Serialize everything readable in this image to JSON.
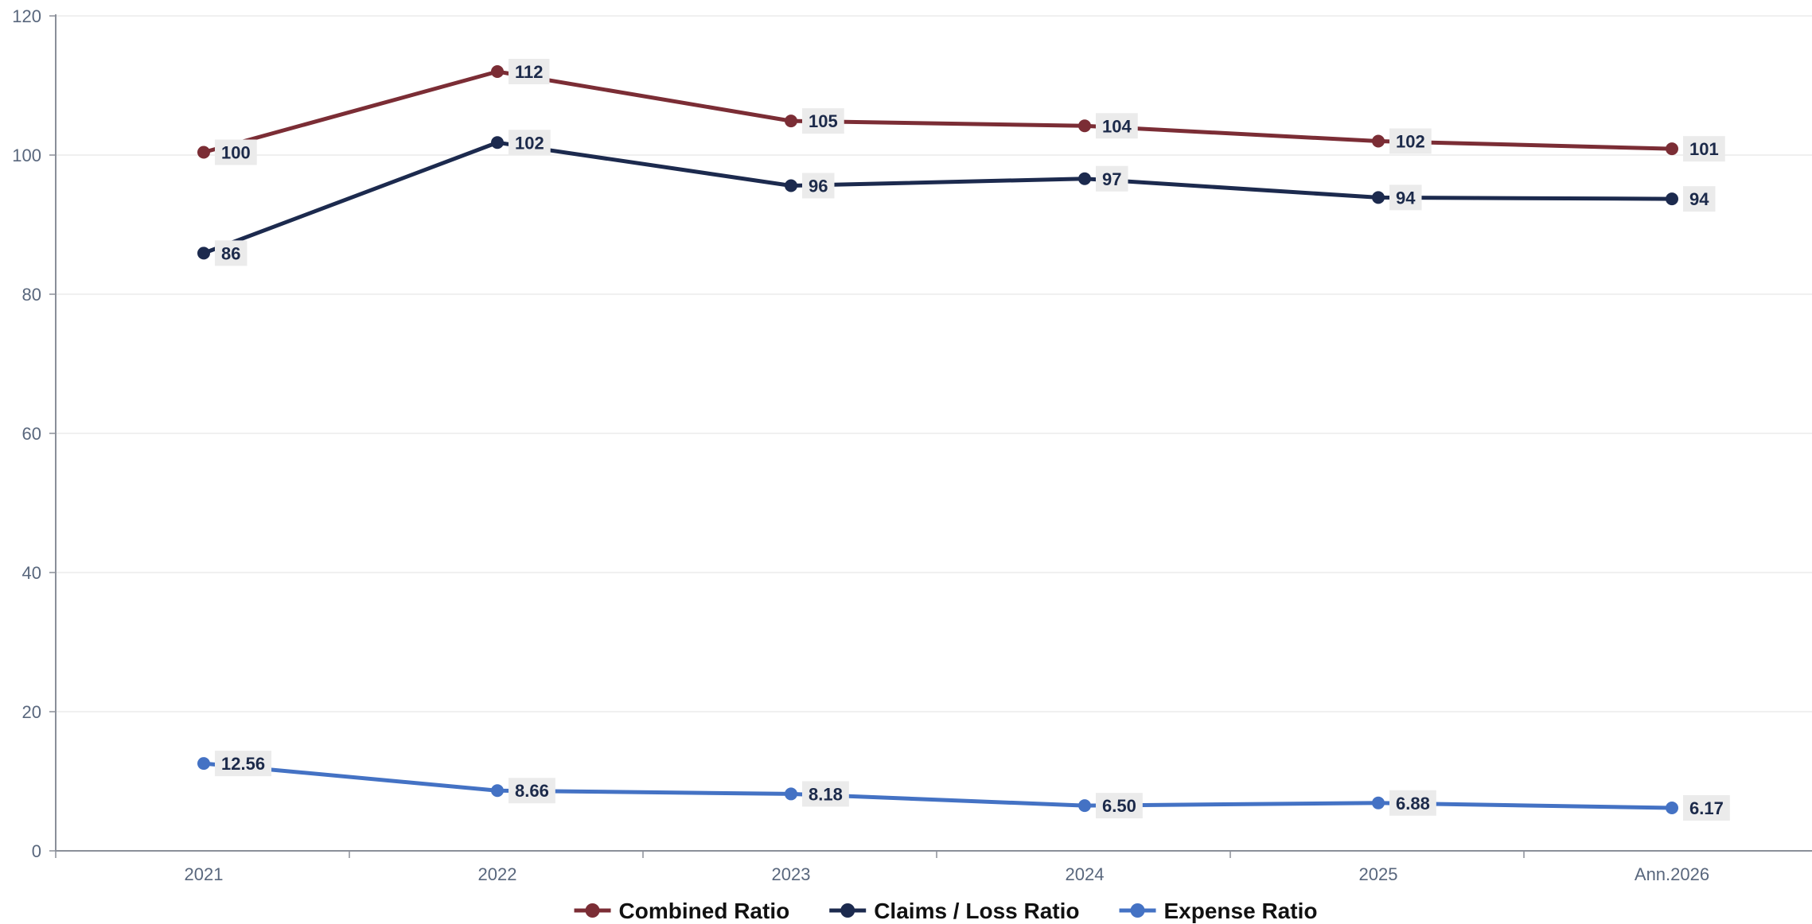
{
  "chart_data": {
    "type": "line",
    "title": "",
    "xlabel": "",
    "ylabel": "",
    "categories": [
      "2021",
      "2022",
      "2023",
      "2024",
      "2025",
      "Ann.2026"
    ],
    "ylim": [
      0,
      120
    ],
    "yticks": [
      0,
      20,
      40,
      60,
      80,
      100,
      120
    ],
    "grid": true,
    "legend_position": "bottom-center",
    "series": [
      {
        "name": "Combined Ratio",
        "color": "#7b2d35",
        "values": [
          100.4,
          112,
          104.9,
          104.2,
          102,
          100.9
        ],
        "labels": [
          "100",
          "112",
          "105",
          "104",
          "102",
          "101"
        ]
      },
      {
        "name": "Claims / Loss Ratio",
        "color": "#1c2a4e",
        "values": [
          85.9,
          101.8,
          95.6,
          96.6,
          93.9,
          93.7
        ],
        "labels": [
          "86",
          "102",
          "96",
          "97",
          "94",
          "94"
        ]
      },
      {
        "name": "Expense Ratio",
        "color": "#4472c4",
        "values": [
          12.56,
          8.66,
          8.18,
          6.5,
          6.88,
          6.17
        ],
        "labels": [
          "12.56",
          "8.66",
          "8.18",
          "6.50",
          "6.88",
          "6.17"
        ]
      }
    ]
  }
}
